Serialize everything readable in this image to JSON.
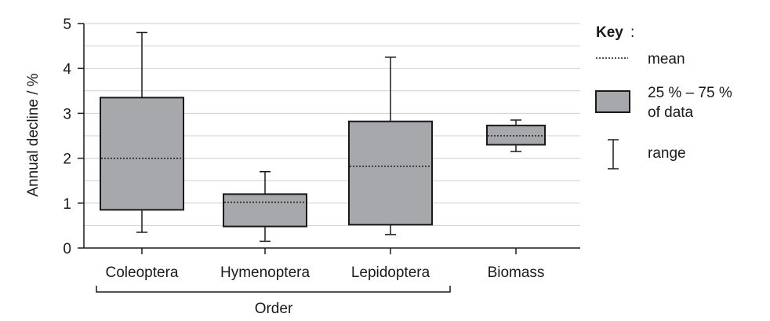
{
  "chart_data": {
    "type": "box",
    "ylabel": "Annual decline / %",
    "ylim": [
      0,
      5
    ],
    "yticks": [
      0,
      1,
      2,
      3,
      4,
      5
    ],
    "grid": "horizontal-every-0.5",
    "categories": [
      "Coleoptera",
      "Hymenoptera",
      "Lepidoptera",
      "Biomass"
    ],
    "group_label": "Order",
    "boxes": [
      {
        "category": "Coleoptera",
        "min": 0.35,
        "q1": 0.85,
        "mean": 2.0,
        "q3": 3.35,
        "max": 4.8
      },
      {
        "category": "Hymenoptera",
        "min": 0.15,
        "q1": 0.48,
        "mean": 1.02,
        "q3": 1.2,
        "max": 1.7
      },
      {
        "category": "Lepidoptera",
        "min": 0.3,
        "q1": 0.52,
        "mean": 1.82,
        "q3": 2.82,
        "max": 4.25
      },
      {
        "category": "Biomass",
        "min": 2.15,
        "q1": 2.3,
        "mean": 2.5,
        "q3": 2.73,
        "max": 2.85
      }
    ],
    "colors": {
      "box_fill": "#a7a8ab",
      "stroke": "#1a1a1a",
      "grid": "#cfcfcf"
    },
    "key": {
      "title": "Key",
      "title_suffix": ":",
      "mean_label": "mean",
      "box_label_line1": "25 % – 75 %",
      "box_label_line2": "of data",
      "range_label": "range"
    }
  }
}
